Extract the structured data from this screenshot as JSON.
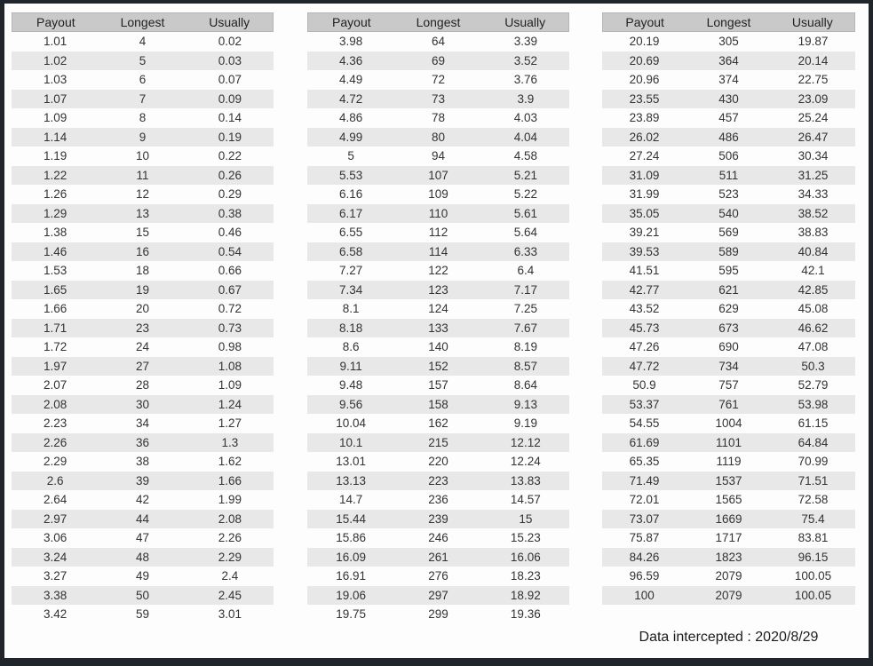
{
  "colors": {
    "frame": "#20242b",
    "page_bg": "#fdfdfd",
    "header_bg": "#c9c9c9",
    "stripe_bg": "#e8e8e8",
    "text": "#333333"
  },
  "footer": {
    "label": "Data intercepted : 2020/8/29"
  },
  "tables": [
    {
      "columns": [
        "Payout",
        "Longest",
        "Usually"
      ],
      "rows": [
        [
          "1.01",
          "4",
          "0.02"
        ],
        [
          "1.02",
          "5",
          "0.03"
        ],
        [
          "1.03",
          "6",
          "0.07"
        ],
        [
          "1.07",
          "7",
          "0.09"
        ],
        [
          "1.09",
          "8",
          "0.14"
        ],
        [
          "1.14",
          "9",
          "0.19"
        ],
        [
          "1.19",
          "10",
          "0.22"
        ],
        [
          "1.22",
          "11",
          "0.26"
        ],
        [
          "1.26",
          "12",
          "0.29"
        ],
        [
          "1.29",
          "13",
          "0.38"
        ],
        [
          "1.38",
          "15",
          "0.46"
        ],
        [
          "1.46",
          "16",
          "0.54"
        ],
        [
          "1.53",
          "18",
          "0.66"
        ],
        [
          "1.65",
          "19",
          "0.67"
        ],
        [
          "1.66",
          "20",
          "0.72"
        ],
        [
          "1.71",
          "23",
          "0.73"
        ],
        [
          "1.72",
          "24",
          "0.98"
        ],
        [
          "1.97",
          "27",
          "1.08"
        ],
        [
          "2.07",
          "28",
          "1.09"
        ],
        [
          "2.08",
          "30",
          "1.24"
        ],
        [
          "2.23",
          "34",
          "1.27"
        ],
        [
          "2.26",
          "36",
          "1.3"
        ],
        [
          "2.29",
          "38",
          "1.62"
        ],
        [
          "2.6",
          "39",
          "1.66"
        ],
        [
          "2.64",
          "42",
          "1.99"
        ],
        [
          "2.97",
          "44",
          "2.08"
        ],
        [
          "3.06",
          "47",
          "2.26"
        ],
        [
          "3.24",
          "48",
          "2.29"
        ],
        [
          "3.27",
          "49",
          "2.4"
        ],
        [
          "3.38",
          "50",
          "2.45"
        ],
        [
          "3.42",
          "59",
          "3.01"
        ]
      ]
    },
    {
      "columns": [
        "Payout",
        "Longest",
        "Usually"
      ],
      "rows": [
        [
          "3.98",
          "64",
          "3.39"
        ],
        [
          "4.36",
          "69",
          "3.52"
        ],
        [
          "4.49",
          "72",
          "3.76"
        ],
        [
          "4.72",
          "73",
          "3.9"
        ],
        [
          "4.86",
          "78",
          "4.03"
        ],
        [
          "4.99",
          "80",
          "4.04"
        ],
        [
          "5",
          "94",
          "4.58"
        ],
        [
          "5.53",
          "107",
          "5.21"
        ],
        [
          "6.16",
          "109",
          "5.22"
        ],
        [
          "6.17",
          "110",
          "5.61"
        ],
        [
          "6.55",
          "112",
          "5.64"
        ],
        [
          "6.58",
          "114",
          "6.33"
        ],
        [
          "7.27",
          "122",
          "6.4"
        ],
        [
          "7.34",
          "123",
          "7.17"
        ],
        [
          "8.1",
          "124",
          "7.25"
        ],
        [
          "8.18",
          "133",
          "7.67"
        ],
        [
          "8.6",
          "140",
          "8.19"
        ],
        [
          "9.11",
          "152",
          "8.57"
        ],
        [
          "9.48",
          "157",
          "8.64"
        ],
        [
          "9.56",
          "158",
          "9.13"
        ],
        [
          "10.04",
          "162",
          "9.19"
        ],
        [
          "10.1",
          "215",
          "12.12"
        ],
        [
          "13.01",
          "220",
          "12.24"
        ],
        [
          "13.13",
          "223",
          "13.83"
        ],
        [
          "14.7",
          "236",
          "14.57"
        ],
        [
          "15.44",
          "239",
          "15"
        ],
        [
          "15.86",
          "246",
          "15.23"
        ],
        [
          "16.09",
          "261",
          "16.06"
        ],
        [
          "16.91",
          "276",
          "18.23"
        ],
        [
          "19.06",
          "297",
          "18.92"
        ],
        [
          "19.75",
          "299",
          "19.36"
        ]
      ]
    },
    {
      "columns": [
        "Payout",
        "Longest",
        "Usually"
      ],
      "rows": [
        [
          "20.19",
          "305",
          "19.87"
        ],
        [
          "20.69",
          "364",
          "20.14"
        ],
        [
          "20.96",
          "374",
          "22.75"
        ],
        [
          "23.55",
          "430",
          "23.09"
        ],
        [
          "23.89",
          "457",
          "25.24"
        ],
        [
          "26.02",
          "486",
          "26.47"
        ],
        [
          "27.24",
          "506",
          "30.34"
        ],
        [
          "31.09",
          "511",
          "31.25"
        ],
        [
          "31.99",
          "523",
          "34.33"
        ],
        [
          "35.05",
          "540",
          "38.52"
        ],
        [
          "39.21",
          "569",
          "38.83"
        ],
        [
          "39.53",
          "589",
          "40.84"
        ],
        [
          "41.51",
          "595",
          "42.1"
        ],
        [
          "42.77",
          "621",
          "42.85"
        ],
        [
          "43.52",
          "629",
          "45.08"
        ],
        [
          "45.73",
          "673",
          "46.62"
        ],
        [
          "47.26",
          "690",
          "47.08"
        ],
        [
          "47.72",
          "734",
          "50.3"
        ],
        [
          "50.9",
          "757",
          "52.79"
        ],
        [
          "53.37",
          "761",
          "53.98"
        ],
        [
          "54.55",
          "1004",
          "61.15"
        ],
        [
          "61.69",
          "1101",
          "64.84"
        ],
        [
          "65.35",
          "1119",
          "70.99"
        ],
        [
          "71.49",
          "1537",
          "71.51"
        ],
        [
          "72.01",
          "1565",
          "72.58"
        ],
        [
          "73.07",
          "1669",
          "75.4"
        ],
        [
          "75.87",
          "1717",
          "83.81"
        ],
        [
          "84.26",
          "1823",
          "96.15"
        ],
        [
          "96.59",
          "2079",
          "100.05"
        ],
        [
          "100",
          "2079",
          "100.05"
        ]
      ]
    }
  ]
}
